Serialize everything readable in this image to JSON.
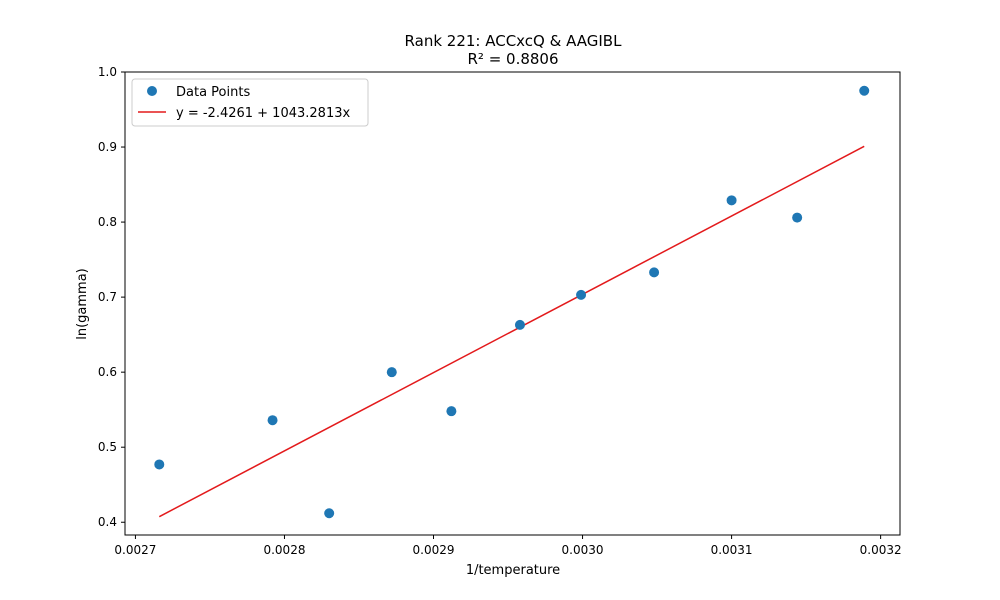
{
  "chart_data": {
    "type": "scatter",
    "title": "Rank 221: ACCxcQ & AAGIBL",
    "subtitle": "R² = 0.8806",
    "xlabel": "1/temperature",
    "ylabel": "ln(gamma)",
    "xlim": [
      0.002693,
      0.003213
    ],
    "ylim": [
      0.383,
      1.0
    ],
    "xticks": [
      0.0027,
      0.0028,
      0.0029,
      0.003,
      0.0031,
      0.0032
    ],
    "xtick_labels": [
      "0.0027",
      "0.0028",
      "0.0029",
      "0.0030",
      "0.0031",
      "0.0032"
    ],
    "yticks": [
      0.4,
      0.5,
      0.6,
      0.7,
      0.8,
      0.9,
      1.0
    ],
    "ytick_labels": [
      "0.4",
      "0.5",
      "0.6",
      "0.7",
      "0.8",
      "0.9",
      "1.0"
    ],
    "grid": false,
    "legend_position": "top-left",
    "series": [
      {
        "name": "Data Points",
        "kind": "scatter",
        "color": "#1f77b4",
        "x": [
          0.002716,
          0.002792,
          0.00283,
          0.002872,
          0.002912,
          0.002958,
          0.002999,
          0.003048,
          0.0031,
          0.003144,
          0.003189
        ],
        "y": [
          0.477,
          0.536,
          0.412,
          0.6,
          0.548,
          0.663,
          0.703,
          0.733,
          0.829,
          0.806,
          0.975
        ]
      },
      {
        "name": "y = -2.4261 + 1043.2813x",
        "kind": "line",
        "color": "#e31a1c",
        "intercept": -2.4261,
        "slope": 1043.2813,
        "x_range": [
          0.002716,
          0.003189
        ]
      }
    ]
  }
}
